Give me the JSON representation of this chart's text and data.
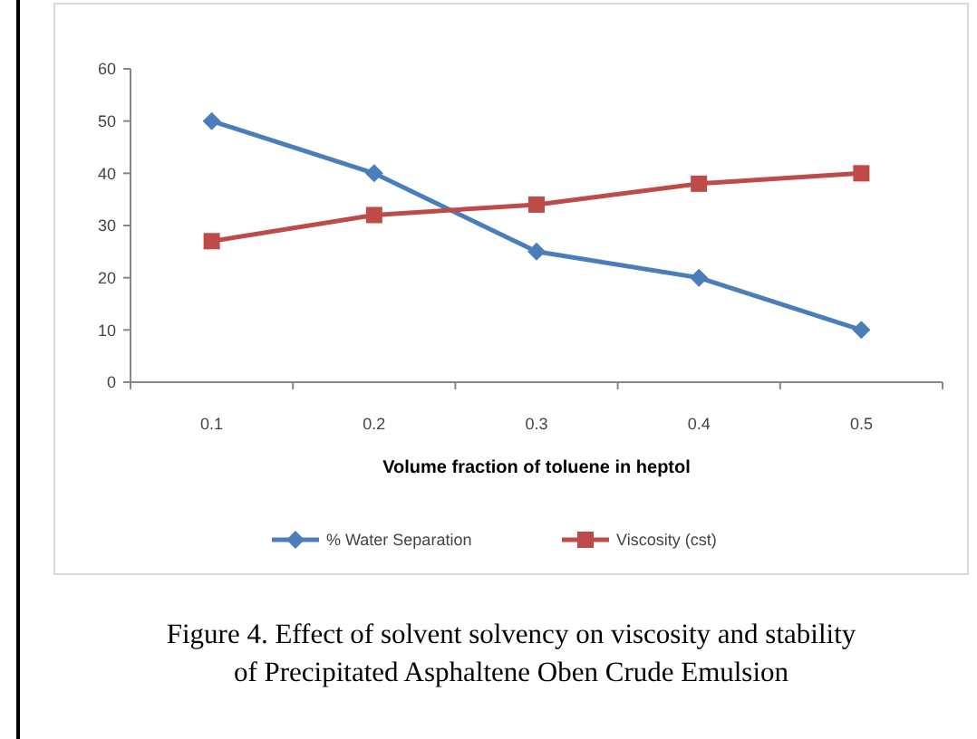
{
  "chart_data": {
    "type": "line",
    "xlabel": "Volume fraction of toluene in heptol",
    "categories": [
      "0.1",
      "0.2",
      "0.3",
      "0.4",
      "0.5"
    ],
    "series": [
      {
        "name": "% Water Separation",
        "color": "#4a7ebb",
        "marker": "diamond",
        "values": [
          50,
          40,
          25,
          20,
          10
        ]
      },
      {
        "name": "Viscosity (cst)",
        "color": "#be4b48",
        "marker": "square",
        "values": [
          27,
          32,
          34,
          38,
          40
        ]
      }
    ],
    "ylim": [
      0,
      60
    ],
    "yticks": [
      0,
      10,
      20,
      30,
      40,
      50,
      60
    ],
    "grid": false,
    "legend": "bottom",
    "annotations": [
      "Figure  4.  Effect of solvent solvency on viscosity and stability",
      "of Precipitated Asphaltene Oben Crude Emulsion"
    ]
  }
}
